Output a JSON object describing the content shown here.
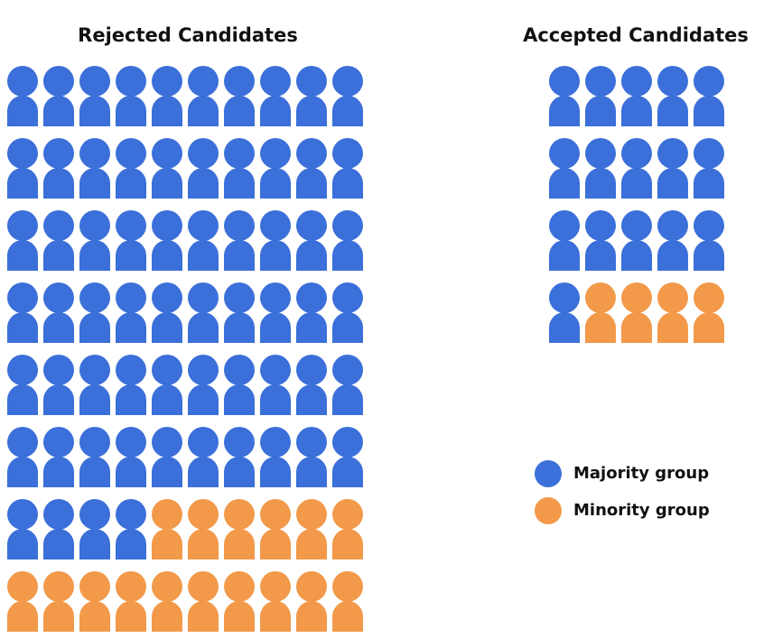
{
  "chart_data": {
    "type": "pictogram",
    "categories": [
      "Rejected Candidates",
      "Accepted Candidates"
    ],
    "series": [
      {
        "name": "Majority group",
        "color": "#3b6fd9",
        "values": [
          64,
          16
        ]
      },
      {
        "name": "Minority group",
        "color": "#f2994a",
        "values": [
          16,
          4
        ]
      }
    ]
  }
}
